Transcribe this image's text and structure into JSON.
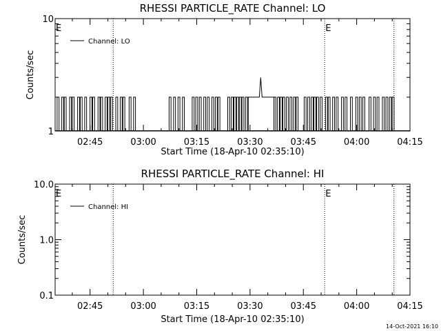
{
  "footer_timestamp": "14-Oct-2021 16:10",
  "chart_data": [
    {
      "type": "line",
      "title": "RHESSI PARTICLE_RATE Channel: LO",
      "xlabel": "Start Time (18-Apr-10 02:35:10)",
      "ylabel": "Counts/sec",
      "yscale": "log",
      "ylim": [
        1,
        10
      ],
      "y_tick_labels": [
        "1",
        "10"
      ],
      "x_tick_labels": [
        "02:45",
        "03:00",
        "03:15",
        "03:30",
        "03:45",
        "04:00",
        "04:15"
      ],
      "xlim": [
        "02:35:10",
        "04:15:00"
      ],
      "legend": {
        "placement": "top-left",
        "entries": [
          "Channel: LO"
        ]
      },
      "eclipse_lines": [
        "02:51:30",
        "03:51:00",
        "04:10:30"
      ],
      "markers": [
        {
          "label": "E",
          "time": "02:35:10"
        },
        {
          "label": "E",
          "time": "03:51:00"
        }
      ],
      "series": [
        {
          "name": "Channel: LO",
          "spikes": [
            "02:36:00",
            "02:37:15",
            "02:38:00",
            "02:39:30",
            "02:40:15",
            "02:41:45",
            "02:42:30",
            "02:43:45",
            "02:45:15",
            "02:46:00",
            "02:47:30",
            "02:48:15",
            "02:49:30",
            "02:50:15",
            "02:51:00",
            "02:52:30",
            "02:53:45",
            "02:54:30",
            "02:56:15",
            "02:57:30",
            "03:07:30",
            "03:08:45",
            "03:10:00",
            "03:11:15",
            "03:14:00",
            "03:15:00",
            "03:16:00",
            "03:17:15",
            "03:18:15",
            "03:19:30",
            "03:20:30",
            "03:21:15",
            "03:24:00",
            "03:25:00",
            "03:25:45",
            "03:26:30",
            "03:27:15",
            "03:28:00",
            "03:29:00",
            "03:37:00",
            "03:38:00",
            "03:38:45",
            "03:39:30",
            "03:40:30",
            "03:41:30",
            "03:42:30",
            "03:43:15",
            "03:45:30",
            "03:46:30",
            "03:47:30",
            "03:48:15",
            "03:49:00",
            "03:50:00",
            "03:51:30",
            "03:52:15",
            "03:53:30",
            "03:54:30",
            "03:56:00",
            "03:57:00",
            "03:58:30",
            "04:00:00",
            "04:01:00",
            "04:02:00",
            "04:03:45",
            "04:05:00",
            "04:06:00",
            "04:07:30",
            "04:08:30",
            "04:09:30",
            "04:10:15"
          ],
          "plateau": {
            "start": "03:29:30",
            "end": "03:36:45",
            "value": 2
          },
          "peak": {
            "time": "03:33:00",
            "value": 3
          },
          "baseline": 1,
          "spike_value": 2
        }
      ]
    },
    {
      "type": "line",
      "title": "RHESSI PARTICLE_RATE Channel: HI",
      "xlabel": "Start Time (18-Apr-10 02:35:10)",
      "ylabel": "Counts/sec",
      "yscale": "log",
      "ylim": [
        0.1,
        10
      ],
      "y_tick_labels": [
        "0.1",
        "1.0",
        "10.0"
      ],
      "x_tick_labels": [
        "02:45",
        "03:00",
        "03:15",
        "03:30",
        "03:45",
        "04:00",
        "04:15"
      ],
      "xlim": [
        "02:35:10",
        "04:15:00"
      ],
      "legend": {
        "placement": "top-left",
        "entries": [
          "Channel: HI"
        ]
      },
      "eclipse_lines": [
        "02:51:30",
        "03:51:00",
        "04:10:30"
      ],
      "markers": [
        {
          "label": "E",
          "time": "02:35:10"
        },
        {
          "label": "E",
          "time": "03:51:00"
        }
      ],
      "series": [
        {
          "name": "Channel: HI",
          "spikes": [],
          "baseline": null
        }
      ]
    }
  ]
}
